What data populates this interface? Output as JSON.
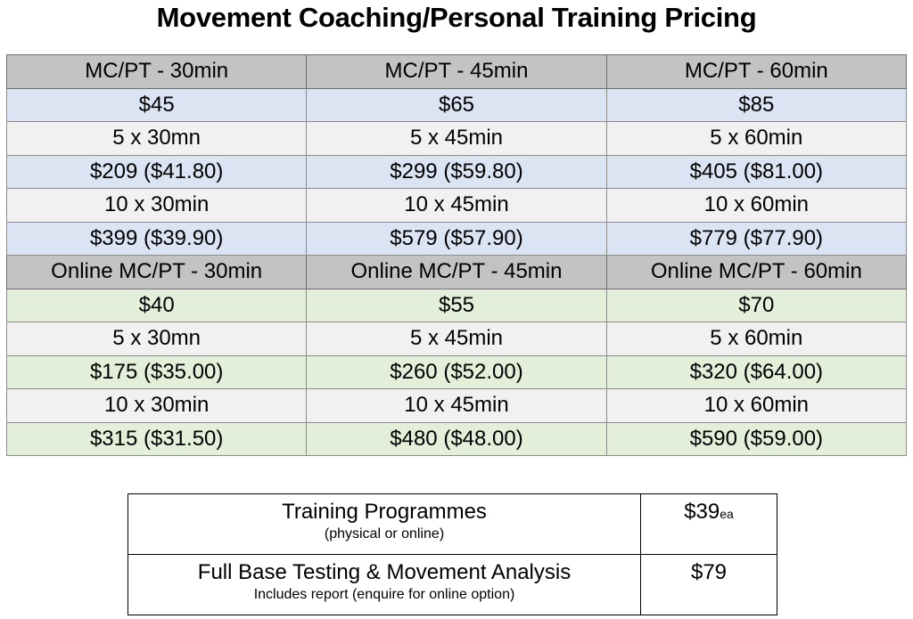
{
  "title": "Movement Coaching/Personal Training Pricing",
  "in_person": {
    "headers": [
      "MC/PT - 30min",
      "MC/PT - 45min",
      "MC/PT - 60min"
    ],
    "rows": [
      [
        "$45",
        "$65",
        "$85"
      ],
      [
        "5 x 30mn",
        "5 x 45min",
        "5 x 60min"
      ],
      [
        "$209 ($41.80)",
        "$299 ($59.80)",
        "$405 ($81.00)"
      ],
      [
        "10 x 30min",
        "10 x 45min",
        "10 x 60min"
      ],
      [
        "$399 ($39.90)",
        "$579 ($57.90)",
        "$779 ($77.90)"
      ]
    ]
  },
  "online": {
    "headers": [
      "Online MC/PT - 30min",
      "Online MC/PT - 45min",
      "Online MC/PT - 60min"
    ],
    "rows": [
      [
        "$40",
        "$55",
        "$70"
      ],
      [
        "5 x 30mn",
        "5 x 45min",
        "5 x 60min"
      ],
      [
        "$175 ($35.00)",
        "$260 ($52.00)",
        "$320 ($64.00)"
      ],
      [
        "10 x 30min",
        "10 x 45min",
        "10 x 60min"
      ],
      [
        "$315 ($31.50)",
        "$480 ($48.00)",
        "$590 ($59.00)"
      ]
    ]
  },
  "extras": [
    {
      "label": "Training Programmes",
      "note": "(physical or online)",
      "price": "$39",
      "unit": "ea"
    },
    {
      "label": "Full Base Testing & Movement Analysis",
      "note": "Includes report (enquire for online option)",
      "price": "$79",
      "unit": ""
    }
  ],
  "colors": {
    "header_bg": "#c3c3c3",
    "in_person_price_bg": "#dbe4f3",
    "online_price_bg": "#e3efd8",
    "package_row_bg": "#f1f1f1"
  }
}
